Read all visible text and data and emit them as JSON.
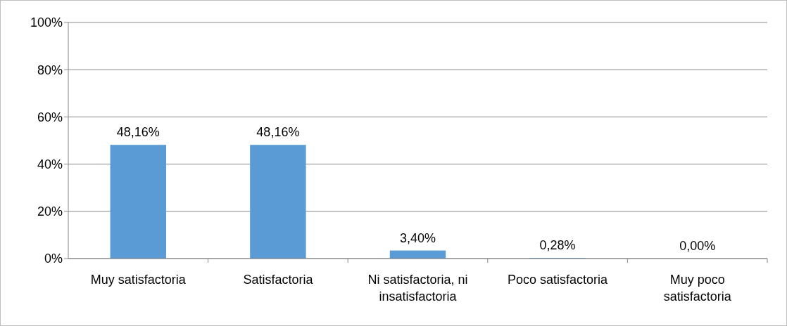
{
  "chart_data": {
    "type": "bar",
    "categories": [
      "Muy satisfactoria",
      "Satisfactoria",
      "Ni satisfactoria, ni insatisfactoria",
      "Poco satisfactoria",
      "Muy poco satisfactoria"
    ],
    "values": [
      48.16,
      48.16,
      3.4,
      0.28,
      0.0
    ],
    "value_labels": [
      "48,16%",
      "48,16%",
      "3,40%",
      "0,28%",
      "0,00%"
    ],
    "color": "#5b9bd5",
    "ylim": [
      0,
      100
    ],
    "yticks": [
      {
        "value": 0,
        "label": "0%"
      },
      {
        "value": 20,
        "label": "20%"
      },
      {
        "value": 40,
        "label": "40%"
      },
      {
        "value": 60,
        "label": "60%"
      },
      {
        "value": 80,
        "label": "80%"
      },
      {
        "value": 100,
        "label": "100%"
      }
    ],
    "grid": "y"
  }
}
